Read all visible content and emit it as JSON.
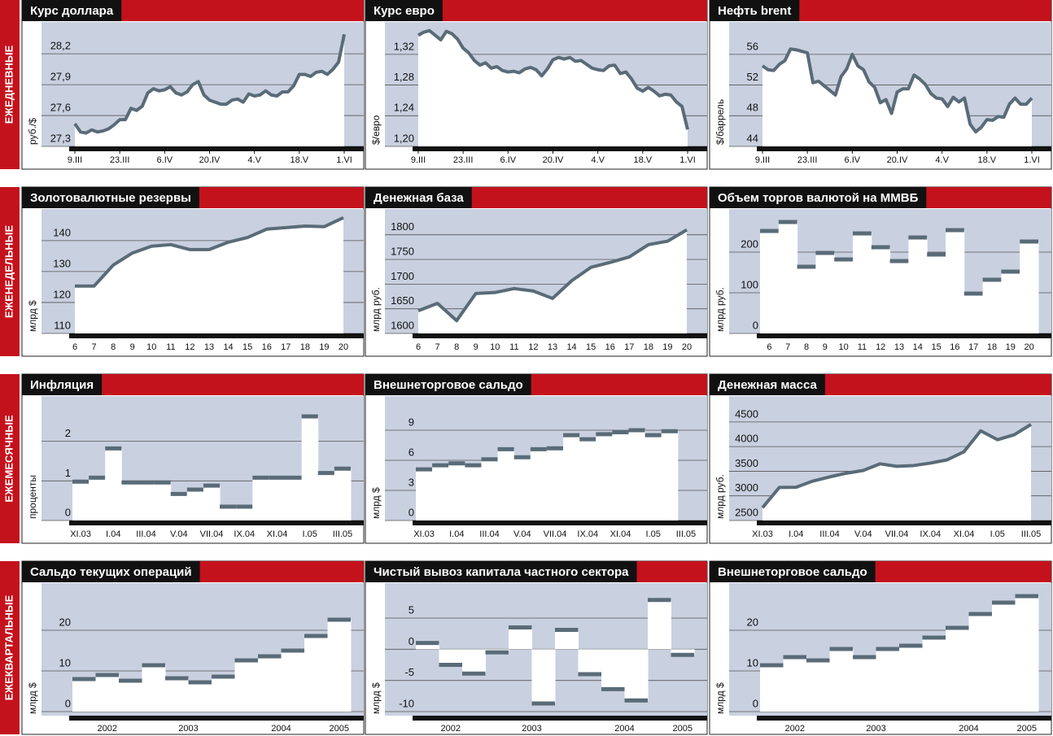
{
  "rows": [
    {
      "label": "ЕЖЕДНЕВНЫЕ"
    },
    {
      "label": "ЕЖЕНЕДЕЛЬНЫЕ"
    },
    {
      "label": "ЕЖЕМЕСЯЧНЫЕ"
    },
    {
      "label": "ЕЖЕКВАРТАЛЬНЫЕ"
    }
  ],
  "chart_data": [
    {
      "type": "line",
      "title": "Курс доллара",
      "ylabel": "руб./$",
      "color": "#5a6b78",
      "values": [
        27.52,
        27.44,
        27.43,
        27.46,
        27.44,
        27.45,
        27.47,
        27.51,
        27.56,
        27.56,
        27.67,
        27.65,
        27.69,
        27.82,
        27.86,
        27.84,
        27.85,
        27.88,
        27.82,
        27.8,
        27.83,
        27.9,
        27.93,
        27.8,
        27.75,
        27.73,
        27.71,
        27.71,
        27.75,
        27.76,
        27.73,
        27.81,
        27.79,
        27.8,
        27.84,
        27.8,
        27.79,
        27.83,
        27.83,
        27.89,
        28.0,
        28.0,
        27.98,
        28.02,
        28.03,
        28.0,
        28.05,
        28.12,
        28.39
      ],
      "xlim": [
        0,
        48
      ],
      "xticks": [
        {
          "value": 0,
          "label": "9.III"
        },
        {
          "value": 8,
          "label": "23.III"
        },
        {
          "value": 16,
          "label": "6.IV"
        },
        {
          "value": 24,
          "label": "20.IV"
        },
        {
          "value": 32,
          "label": "4.V"
        },
        {
          "value": 40,
          "label": "18.V"
        },
        {
          "value": 48,
          "label": "1.VI"
        }
      ],
      "ylim": [
        27.3,
        28.47
      ],
      "yticks": [
        {
          "value": 27.3,
          "label": "27,3"
        },
        {
          "value": 27.6,
          "label": "27,6"
        },
        {
          "value": 27.9,
          "label": "27,9"
        },
        {
          "value": 28.2,
          "label": "28,2"
        }
      ],
      "grid": true
    },
    {
      "type": "line",
      "title": "Курс евро",
      "ylabel": "$/евро",
      "color": "#5a6b78",
      "values": [
        1.345,
        1.349,
        1.351,
        1.345,
        1.339,
        1.35,
        1.347,
        1.34,
        1.328,
        1.322,
        1.312,
        1.306,
        1.309,
        1.302,
        1.304,
        1.299,
        1.297,
        1.298,
        1.296,
        1.301,
        1.303,
        1.3,
        1.292,
        1.301,
        1.313,
        1.316,
        1.314,
        1.316,
        1.311,
        1.312,
        1.307,
        1.302,
        1.3,
        1.299,
        1.305,
        1.306,
        1.295,
        1.297,
        1.288,
        1.276,
        1.272,
        1.277,
        1.272,
        1.266,
        1.268,
        1.267,
        1.258,
        1.252,
        1.222
      ],
      "xlim": [
        0,
        48
      ],
      "xticks": [
        {
          "value": 0,
          "label": "9.III"
        },
        {
          "value": 8,
          "label": "23.III"
        },
        {
          "value": 16,
          "label": "6.IV"
        },
        {
          "value": 24,
          "label": "20.IV"
        },
        {
          "value": 32,
          "label": "4.V"
        },
        {
          "value": 40,
          "label": "18.V"
        },
        {
          "value": 48,
          "label": "1.VI"
        }
      ],
      "ylim": [
        1.2,
        1.357
      ],
      "yticks": [
        {
          "value": 1.2,
          "label": "1,20"
        },
        {
          "value": 1.24,
          "label": "1,24"
        },
        {
          "value": 1.28,
          "label": "1,28"
        },
        {
          "value": 1.32,
          "label": "1,32"
        }
      ],
      "grid": true
    },
    {
      "type": "line",
      "title": "Нефть brent",
      "ylabel": "$/баррель",
      "color": "#5a6b78",
      "values": [
        54.5,
        54.0,
        53.9,
        54.7,
        55.2,
        56.7,
        56.6,
        56.4,
        56.2,
        52.3,
        52.5,
        51.9,
        51.3,
        50.7,
        53.1,
        54.1,
        56.0,
        54.5,
        54.0,
        52.4,
        51.7,
        49.7,
        50.1,
        48.3,
        51.1,
        51.5,
        51.5,
        53.3,
        52.8,
        52.1,
        50.9,
        50.3,
        50.2,
        49.2,
        50.4,
        49.8,
        50.3,
        46.9,
        45.9,
        46.5,
        47.5,
        47.4,
        47.9,
        47.8,
        49.5,
        50.3,
        49.5,
        49.5,
        50.3
      ],
      "xlim": [
        0,
        48
      ],
      "xticks": [
        {
          "value": 0,
          "label": "9.III"
        },
        {
          "value": 8,
          "label": "23.III"
        },
        {
          "value": 16,
          "label": "6.IV"
        },
        {
          "value": 24,
          "label": "20.IV"
        },
        {
          "value": 32,
          "label": "4.V"
        },
        {
          "value": 40,
          "label": "18.V"
        },
        {
          "value": 48,
          "label": "1.VI"
        }
      ],
      "ylim": [
        44,
        59.7
      ],
      "yticks": [
        44,
        48,
        52,
        56
      ],
      "grid": true
    },
    {
      "type": "line",
      "title": "Золотовалютные резервы",
      "ylabel": "млрд $",
      "color": "#5a6b78",
      "categories": [
        "6",
        "7",
        "8",
        "9",
        "10",
        "11",
        "12",
        "13",
        "14",
        "15",
        "16",
        "17",
        "18",
        "19",
        "20"
      ],
      "values": [
        125.3,
        125.3,
        132.1,
        136.0,
        138.2,
        138.7,
        137.1,
        137.1,
        139.5,
        141.0,
        143.7,
        144.2,
        144.7,
        144.5,
        147.4
      ],
      "ylim": [
        110,
        148.9
      ],
      "yticks": [
        110,
        120,
        130,
        140
      ],
      "grid": true
    },
    {
      "type": "line",
      "title": "Денежная база",
      "ylabel": "млрд руб.",
      "color": "#5a6b78",
      "categories": [
        "6",
        "7",
        "8",
        "9",
        "10",
        "11",
        "12",
        "13",
        "14",
        "15",
        "16",
        "17",
        "18",
        "19",
        "20"
      ],
      "values": [
        1646,
        1661,
        1626,
        1681,
        1683,
        1691,
        1686,
        1671,
        1707,
        1734,
        1744,
        1755,
        1780,
        1787,
        1810
      ],
      "ylim": [
        1600,
        1844
      ],
      "yticks": [
        1600,
        1650,
        1700,
        1750,
        1800
      ],
      "grid": true
    },
    {
      "type": "step",
      "title": "Объем торгов валютой на ММВБ",
      "ylabel": "млрд руб.",
      "color": "#5a6b78",
      "categories": [
        "6",
        "7",
        "8",
        "9",
        "10",
        "11",
        "12",
        "13",
        "14",
        "15",
        "16",
        "17",
        "18",
        "19",
        "20"
      ],
      "values": [
        252,
        274,
        164,
        198,
        182,
        246,
        212,
        178,
        236,
        194,
        254,
        98,
        132,
        152,
        226
      ],
      "ylim": [
        0,
        296
      ],
      "yticks": [
        0,
        100,
        200
      ],
      "grid": true
    },
    {
      "type": "step",
      "title": "Инфляция",
      "ylabel": "проценты",
      "color": "#5a6b78",
      "categories": [
        "XI.03",
        null,
        "I.04",
        null,
        "III.04",
        null,
        "V.04",
        null,
        "VII.04",
        null,
        "IX.04",
        null,
        "XI.04",
        null,
        "I.05",
        null,
        "III.05"
      ],
      "values": [
        0.98,
        1.08,
        1.82,
        0.96,
        0.96,
        0.96,
        0.67,
        0.78,
        0.88,
        0.35,
        0.35,
        1.08,
        1.08,
        1.08,
        2.63,
        1.2,
        1.31
      ],
      "ylim": [
        0,
        3.04
      ],
      "yticks": [
        0,
        1,
        2
      ],
      "grid": true
    },
    {
      "type": "step",
      "title": "Внешнеторговое сальдо",
      "ylabel": "млрд $",
      "color": "#5a6b78",
      "categories": [
        "XI.03",
        null,
        "I.04",
        null,
        "III.04",
        null,
        "V.04",
        null,
        "VII.04",
        null,
        "IX.04",
        null,
        "XI.04",
        null,
        "I.05",
        null,
        "III.05"
      ],
      "values": [
        5.1,
        5.5,
        5.7,
        5.5,
        6.1,
        7.1,
        6.3,
        7.1,
        7.2,
        8.5,
        8.1,
        8.6,
        8.8,
        9.0,
        8.5,
        8.9,
        null
      ],
      "ylim": [
        0,
        12
      ],
      "yticks": [
        0,
        3,
        6,
        9
      ],
      "grid": true
    },
    {
      "type": "line",
      "title": "Денежная масса",
      "ylabel": "млрд руб.",
      "color": "#5a6b78",
      "categories": [
        "XI.03",
        null,
        "I.04",
        null,
        "III.04",
        null,
        "V.04",
        null,
        "VII.04",
        null,
        "IX.04",
        null,
        "XI.04",
        null,
        "I.05",
        null,
        "III.05"
      ],
      "values": [
        2760,
        3170,
        3175,
        3300,
        3385,
        3460,
        3515,
        3650,
        3600,
        3615,
        3665,
        3730,
        3895,
        4320,
        4140,
        4240,
        4450
      ],
      "ylim": [
        2500,
        4943
      ],
      "yticks": [
        2500,
        3000,
        3500,
        4000,
        4500
      ],
      "grid": true
    },
    {
      "type": "step",
      "title": "Сальдо текущих операций",
      "ylabel": "млрд $",
      "color": "#5a6b78",
      "categories": [
        "2002",
        "2002",
        "2002",
        "2003",
        "2003",
        "2003",
        "2003",
        "2004",
        "2004",
        "2004",
        "2004",
        "2005"
      ],
      "values": [
        8.0,
        9.0,
        7.6,
        11.4,
        8.2,
        7.2,
        8.6,
        12.6,
        13.6,
        15.0,
        18.6,
        22.6
      ],
      "ylim": [
        -1,
        30.6
      ],
      "yticks": [
        0,
        10,
        20
      ],
      "grid": true
    },
    {
      "type": "step",
      "title": "Чистый вывоз капитала частного сектора",
      "ylabel": "млрд $",
      "color": "#5a6b78",
      "categories": [
        "2002",
        "2002",
        "2002",
        "2003",
        "2003",
        "2003",
        "2003",
        "2004",
        "2004",
        "2004",
        "2004",
        "2005"
      ],
      "values": [
        1.0,
        -2.5,
        -3.9,
        -0.5,
        3.5,
        -8.7,
        3.1,
        -4.0,
        -6.4,
        -8.2,
        7.9,
        -0.9
      ],
      "ylim": [
        -10.65,
        9.95
      ],
      "yticks": [
        -10,
        -5,
        0,
        5
      ],
      "grid": true
    },
    {
      "type": "step",
      "title": "Внешнеторговое сальдо",
      "ylabel": "млрд $",
      "color": "#5a6b78",
      "categories": [
        "2002",
        "2002",
        "2002",
        "2003",
        "2003",
        "2003",
        "2003",
        "2004",
        "2004",
        "2004",
        "2004",
        "2005"
      ],
      "values": [
        11.4,
        13.4,
        12.6,
        15.4,
        13.4,
        15.4,
        16.2,
        18.2,
        20.6,
        24.0,
        26.8,
        28.4
      ],
      "ylim": [
        -1,
        30.6
      ],
      "yticks": [
        0,
        10,
        20
      ],
      "grid": true
    }
  ]
}
